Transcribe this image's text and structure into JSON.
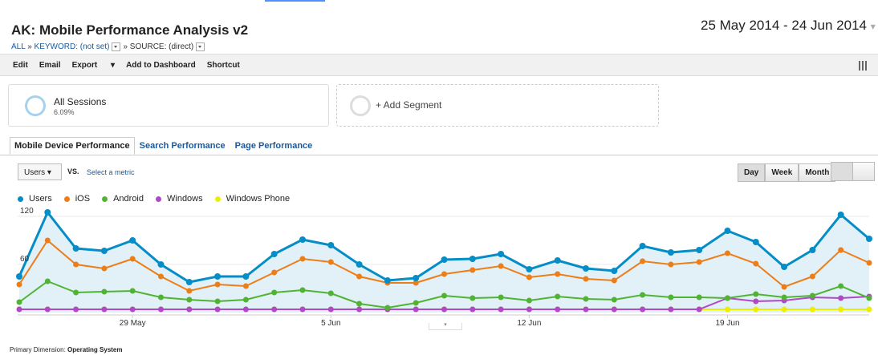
{
  "header": {
    "title": "AK: Mobile Performance Analysis v2",
    "breadcrumb": [
      "ALL",
      "KEYWORD: (not set)",
      "SOURCE: (direct)"
    ],
    "separator": "»",
    "date_range": "25 May 2014 - 24 Jun 2014"
  },
  "toolbar": [
    "Edit",
    "Email",
    "Export",
    "Add to Dashboard",
    "Shortcut"
  ],
  "segments": [
    {
      "label": "All Sessions",
      "value": "6.09%"
    },
    {
      "label": "+ Add Segment"
    }
  ],
  "tabs": [
    "Mobile Device Performance",
    "Search Performance",
    "Page Performance"
  ],
  "controls": {
    "metric": "Users",
    "vs": "VS.",
    "select": "Select a metric",
    "intervals": [
      "Day",
      "Week",
      "Month"
    ]
  },
  "footer": {
    "label": "Primary Dimension:",
    "value": "Operating System"
  },
  "chart_data": {
    "type": "line",
    "area_series": 0,
    "categories": [
      null,
      null,
      null,
      null,
      "29 May",
      null,
      null,
      null,
      null,
      null,
      null,
      "5 Jun",
      null,
      null,
      null,
      null,
      null,
      null,
      "12 Jun",
      null,
      null,
      null,
      null,
      null,
      null,
      "19 Jun",
      null,
      null,
      null,
      null,
      null
    ],
    "series": [
      {
        "name": "Users",
        "color": "#058dc7",
        "values": [
          45,
          125,
          80,
          77,
          90,
          60,
          38,
          45,
          45,
          73,
          91,
          84,
          60,
          40,
          43,
          66,
          67,
          73,
          54,
          65,
          55,
          52,
          83,
          75,
          78,
          102,
          88,
          57,
          78,
          122,
          92
        ]
      },
      {
        "name": "iOS",
        "color": "#ed7e17",
        "values": [
          35,
          90,
          60,
          55,
          67,
          45,
          27,
          35,
          33,
          50,
          67,
          63,
          45,
          37,
          37,
          48,
          53,
          58,
          44,
          48,
          42,
          40,
          64,
          60,
          63,
          74,
          61,
          32,
          45,
          78,
          62
        ]
      },
      {
        "name": "Android",
        "color": "#50b432",
        "values": [
          13,
          39,
          25,
          26,
          27,
          19,
          16,
          14,
          16,
          25,
          28,
          24,
          11,
          6,
          12,
          21,
          18,
          19,
          15,
          20,
          17,
          16,
          22,
          19,
          19,
          18,
          23,
          19,
          21,
          33,
          18
        ]
      },
      {
        "name": "Windows",
        "color": "#af49c5",
        "values": [
          4,
          4,
          4,
          4,
          4,
          4,
          4,
          4,
          4,
          4,
          4,
          4,
          4,
          4,
          4,
          4,
          4,
          4,
          4,
          4,
          4,
          4,
          4,
          4,
          4,
          18,
          14,
          15,
          19,
          18,
          20
        ]
      },
      {
        "name": "Windows Phone",
        "color": "#edef00",
        "values": [
          4,
          4,
          4,
          4,
          4,
          4,
          4,
          4,
          4,
          4,
          4,
          4,
          4,
          4,
          4,
          4,
          4,
          4,
          4,
          4,
          4,
          4,
          4,
          4,
          4,
          4,
          4,
          4,
          4,
          4,
          4
        ]
      }
    ],
    "ylim": [
      0,
      128
    ],
    "yticks": [
      60,
      120
    ],
    "grid": true
  }
}
